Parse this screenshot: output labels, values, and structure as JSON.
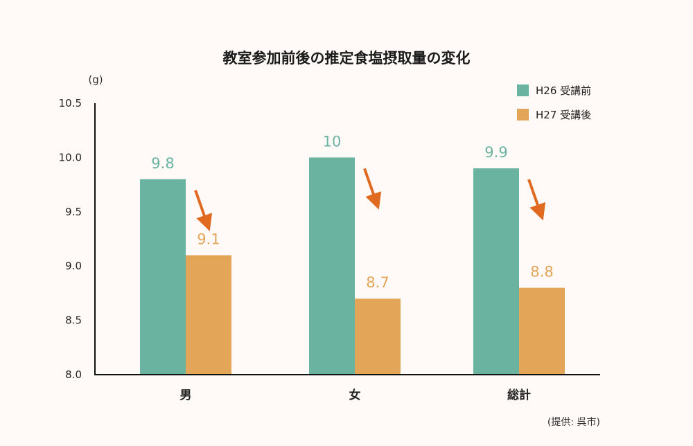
{
  "chart_data": {
    "type": "bar",
    "title": "教室参加前後の推定食塩摂取量の変化",
    "ylabel": "(g)",
    "xlabel": "",
    "categories": [
      "男",
      "女",
      "総計"
    ],
    "series": [
      {
        "name": "H26 受講前",
        "values": [
          9.8,
          10.0,
          9.9
        ],
        "labels": [
          "9.8",
          "10",
          "9.9"
        ],
        "color": "#6ab3a0"
      },
      {
        "name": "H27 受講後",
        "values": [
          9.1,
          8.7,
          8.8
        ],
        "labels": [
          "9.1",
          "8.7",
          "8.8"
        ],
        "color": "#e3a557"
      }
    ],
    "ylim": [
      8.0,
      10.5
    ],
    "yticks": [
      "8.0",
      "8.5",
      "9.0",
      "9.5",
      "10.0",
      "10.5"
    ],
    "grid": false,
    "legend": "top-right",
    "arrow_color": "#e06a20"
  },
  "credit": "(提供: 呉市)"
}
